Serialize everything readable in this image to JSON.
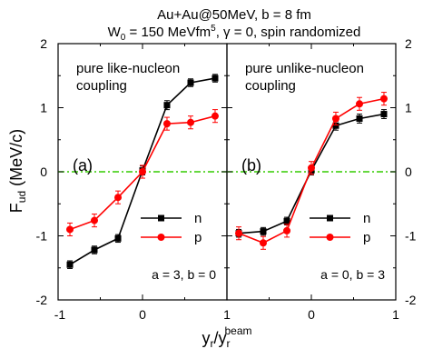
{
  "figure": {
    "title_line1": "Au+Au@50MeV, b = 8 fm",
    "title_line2_w0_main": "W",
    "title_line2_w0_sub": "0",
    "title_line2_mid": " = 150 MeVfm",
    "title_line2_sup": "5",
    "title_line2_rest": ", γ = 0, spin randomized"
  },
  "chart_data": [
    {
      "type": "line",
      "panel_label": "(a)",
      "annotation": "pure like-nucleon\ncoupling",
      "params_text": "a = 3, b = 0",
      "xlim": [
        -1,
        1
      ],
      "ylim": [
        -2,
        2
      ],
      "xticks": [
        "-1",
        "0",
        "1"
      ],
      "yticks": [
        "-2",
        "-1",
        "0",
        "1",
        "2"
      ],
      "ylabel_main": "F",
      "ylabel_sub": "ud",
      "ylabel_rest": " (MeV/c)",
      "legend": "right",
      "series": [
        {
          "name": "n",
          "color": "#000000",
          "marker": "square",
          "x": [
            -0.86,
            -0.57,
            -0.29,
            0.0,
            0.29,
            0.57,
            0.86
          ],
          "y": [
            -1.45,
            -1.22,
            -1.04,
            0.02,
            1.04,
            1.39,
            1.46
          ],
          "err": [
            0.06,
            0.06,
            0.06,
            0.07,
            0.07,
            0.06,
            0.06
          ]
        },
        {
          "name": "p",
          "color": "#ff0000",
          "marker": "circle",
          "x": [
            -0.86,
            -0.57,
            -0.29,
            0.0,
            0.29,
            0.57,
            0.86
          ],
          "y": [
            -0.9,
            -0.76,
            -0.4,
            0.0,
            0.75,
            0.77,
            0.87
          ],
          "err": [
            0.1,
            0.1,
            0.1,
            0.1,
            0.1,
            0.1,
            0.1
          ]
        }
      ]
    },
    {
      "type": "line",
      "panel_label": "(b)",
      "annotation": "pure unlike-nucleon\ncoupling",
      "params_text": "a = 0, b = 3",
      "xlim": [
        -1,
        1
      ],
      "ylim": [
        -2,
        2
      ],
      "xticks": [
        "",
        "0",
        "1"
      ],
      "yticks": [
        "-2",
        "-1",
        "0",
        "1",
        "2"
      ],
      "legend": "right",
      "series": [
        {
          "name": "n",
          "color": "#000000",
          "marker": "square",
          "x": [
            -0.86,
            -0.57,
            -0.29,
            0.0,
            0.29,
            0.57,
            0.86
          ],
          "y": [
            -0.96,
            -0.93,
            -0.77,
            0.02,
            0.72,
            0.83,
            0.9
          ],
          "err": [
            0.06,
            0.06,
            0.06,
            0.07,
            0.07,
            0.07,
            0.07
          ]
        },
        {
          "name": "p",
          "color": "#ff0000",
          "marker": "circle",
          "x": [
            -0.86,
            -0.57,
            -0.29,
            0.0,
            0.29,
            0.57,
            0.86
          ],
          "y": [
            -0.96,
            -1.11,
            -0.92,
            0.06,
            0.83,
            1.06,
            1.14
          ],
          "err": [
            0.1,
            0.1,
            0.1,
            0.1,
            0.1,
            0.1,
            0.1
          ]
        }
      ]
    }
  ],
  "shared_xlabel": {
    "main": "y",
    "sub1": "r",
    "slash": "/y",
    "sub2": "r",
    "sup": "beam"
  }
}
